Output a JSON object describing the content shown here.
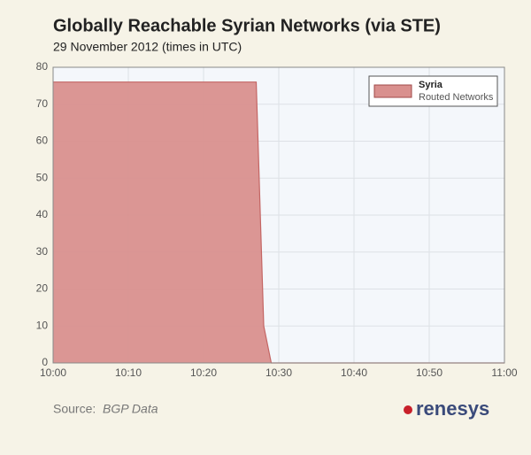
{
  "chart_data": {
    "type": "area",
    "title": "Globally Reachable Syrian Networks (via STE)",
    "subtitle": "29 November 2012 (times in UTC)",
    "x": [
      "10:00",
      "10:27",
      "10:28",
      "10:29",
      "11:00"
    ],
    "series": [
      {
        "name": "Syria",
        "label": "Routed Networks",
        "color": "#d9908e",
        "values": [
          76,
          76,
          10,
          0,
          0
        ]
      }
    ],
    "xlim": [
      "10:00",
      "11:00"
    ],
    "xticks": [
      "10:00",
      "10:10",
      "10:20",
      "10:30",
      "10:40",
      "10:50",
      "11:00"
    ],
    "ylim": [
      0,
      80
    ],
    "yticks": [
      0,
      10,
      20,
      30,
      40,
      50,
      60,
      70,
      80
    ],
    "grid": true,
    "legend": "top-right",
    "source_label": "Source:",
    "source": "BGP Data",
    "logo": "renesys"
  }
}
